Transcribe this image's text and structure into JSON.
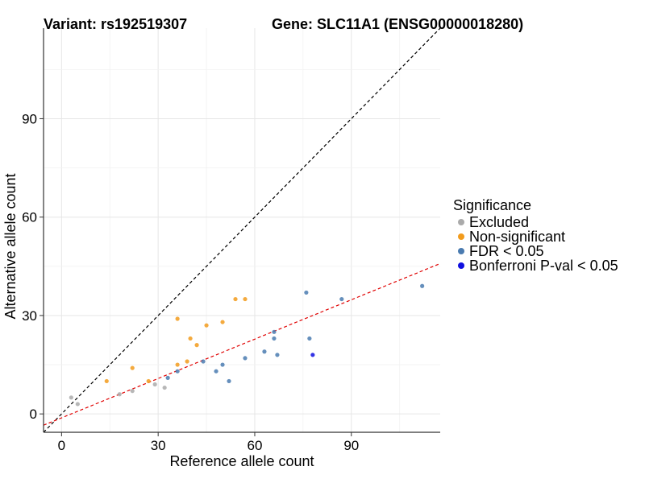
{
  "chart_data": {
    "type": "scatter",
    "title_left": "Variant: rs192519307",
    "title_right": "Gene: SLC11A1 (ENSG00000018280)",
    "xlabel": "Reference allele count",
    "ylabel": "Alternative allele count",
    "xlim": [
      -5.6,
      117.6
    ],
    "ylim": [
      -5.6,
      117.6
    ],
    "xticks": [
      0,
      30,
      60,
      90
    ],
    "yticks": [
      0,
      30,
      60,
      90
    ],
    "grid": true,
    "legend": {
      "title": "Significance",
      "position": "right",
      "entries": [
        {
          "label": "Excluded",
          "color": "#aaaaaa"
        },
        {
          "label": "Non-significant",
          "color": "#f29b1c"
        },
        {
          "label": "FDR < 0.05",
          "color": "#4a7bb0"
        },
        {
          "label": "Bonferroni P-val < 0.05",
          "color": "#1010e0"
        }
      ]
    },
    "reference_lines": [
      {
        "name": "identity-line",
        "slope": 1,
        "intercept": 0,
        "color": "#000000",
        "dash": "dashed"
      },
      {
        "name": "regression-line",
        "slope": 0.4,
        "intercept": -1.2,
        "color": "#e00000",
        "dash": "dashed"
      }
    ],
    "series": [
      {
        "name": "Excluded",
        "color": "#aaaaaa",
        "points": [
          [
            3,
            5
          ],
          [
            5,
            3
          ],
          [
            18,
            6
          ],
          [
            22,
            7
          ],
          [
            29,
            9
          ],
          [
            32,
            8
          ]
        ]
      },
      {
        "name": "Non-significant",
        "color": "#f29b1c",
        "points": [
          [
            14,
            10
          ],
          [
            22,
            14
          ],
          [
            27,
            10
          ],
          [
            36,
            15
          ],
          [
            36,
            29
          ],
          [
            39,
            16
          ],
          [
            40,
            23
          ],
          [
            42,
            21
          ],
          [
            45,
            27
          ],
          [
            50,
            28
          ],
          [
            54,
            35
          ],
          [
            57,
            35
          ]
        ]
      },
      {
        "name": "FDR < 0.05",
        "color": "#4a7bb0",
        "points": [
          [
            33,
            11
          ],
          [
            36,
            13
          ],
          [
            44,
            16
          ],
          [
            48,
            13
          ],
          [
            50,
            15
          ],
          [
            52,
            10
          ],
          [
            57,
            17
          ],
          [
            63,
            19
          ],
          [
            66,
            23
          ],
          [
            66,
            25
          ],
          [
            67,
            18
          ],
          [
            76,
            37
          ],
          [
            77,
            23
          ],
          [
            87,
            35
          ],
          [
            112,
            39
          ]
        ]
      },
      {
        "name": "Bonferroni P-val < 0.05",
        "color": "#1010e0",
        "points": [
          [
            78,
            18
          ]
        ]
      }
    ]
  }
}
